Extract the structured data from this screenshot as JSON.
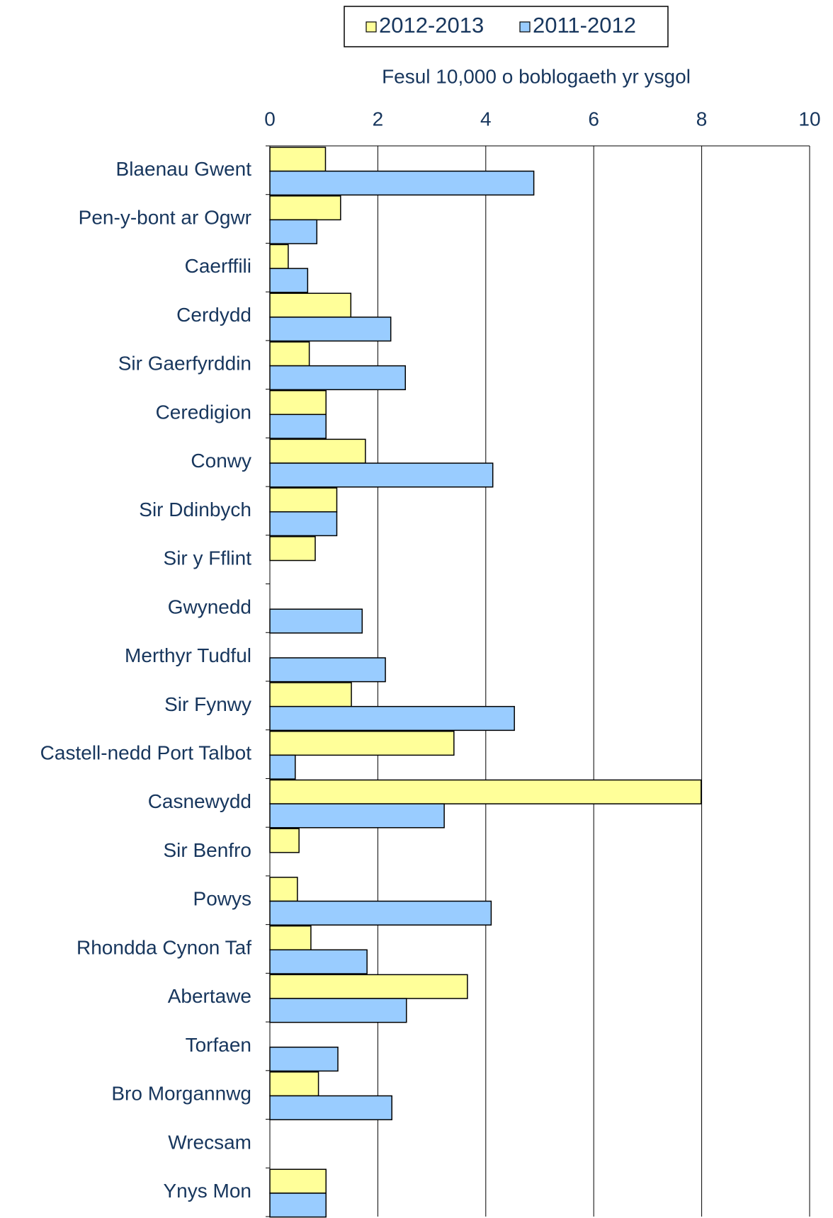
{
  "chart_data": {
    "type": "hbar",
    "x_label": "Fesul 10,000 o boblogaeth yr ysgol",
    "categories": [
      "Blaenau Gwent",
      "Pen-y-bont ar Ogwr",
      "Caerffili",
      "Cerdydd",
      "Sir Gaerfyrddin",
      "Ceredigion",
      "Conwy",
      "Sir Ddinbych",
      "Sir y Fflint",
      "Gwynedd",
      "Merthyr Tudful",
      "Sir Fynwy",
      "Castell-nedd Port Talbot",
      "Casnewydd",
      "Sir Benfro",
      "Powys",
      "Rhondda Cynon Taf",
      "Abertawe",
      "Torfaen",
      "Bro Morgannwg",
      "Wrecsam",
      "Ynys Mon"
    ],
    "series": [
      {
        "name": "2012-2013",
        "color": "#ffff99",
        "values": [
          1.03,
          1.31,
          0.34,
          1.5,
          0.73,
          1.04,
          1.77,
          1.24,
          0.84,
          0,
          0,
          1.51,
          3.41,
          7.99,
          0.54,
          0.51,
          0.76,
          3.66,
          0,
          0.9,
          0,
          1.04
        ]
      },
      {
        "name": "2011-2012",
        "color": "#99ccff",
        "values": [
          4.89,
          0.87,
          0.7,
          2.24,
          2.51,
          1.04,
          4.13,
          1.24,
          0,
          1.71,
          2.14,
          4.53,
          0.47,
          3.23,
          0,
          4.1,
          1.8,
          2.53,
          1.26,
          2.26,
          0,
          1.04
        ]
      }
    ],
    "xlim": [
      0,
      10
    ],
    "xticks": [
      0,
      2,
      4,
      6,
      8,
      10
    ],
    "grid": true,
    "legend": "top"
  }
}
